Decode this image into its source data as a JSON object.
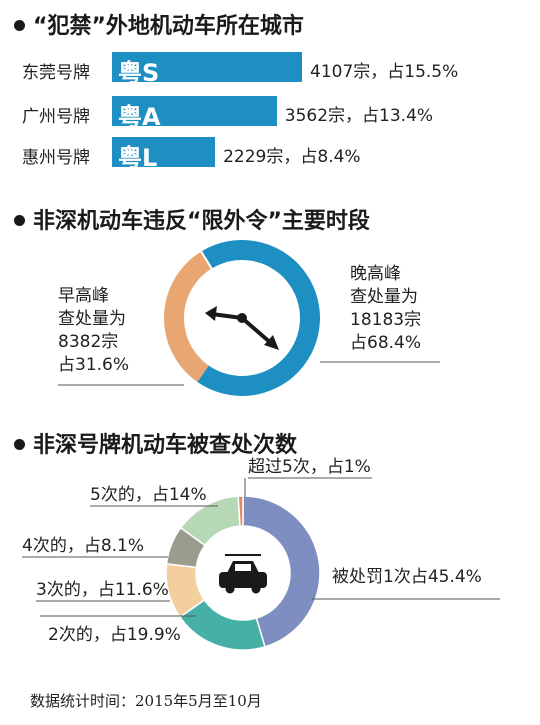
{
  "colors": {
    "bar": "#1d8fc2",
    "donut1_evening": "#1d8fc2",
    "donut1_morning": "#e8a772",
    "donut2": [
      "#7e8ec0",
      "#47b0a6",
      "#f4cf9e",
      "#9c9c8c",
      "#b6d8b5",
      "#e08a6a"
    ]
  },
  "section1": {
    "title": "“犯禁”外地机动车所在城市"
  },
  "section2": {
    "title": "非深机动车违反“限外令”主要时段",
    "morning_lines": [
      "早高峰",
      "查处量为",
      "8382宗",
      "占31.6%"
    ],
    "evening_lines": [
      "晚高峰",
      "查处量为",
      "18183宗",
      "占68.4%"
    ]
  },
  "section3": {
    "title": "非深号牌机动车被查处次数"
  },
  "footer": "数据统计时间：2015年5月至10月",
  "chart_data": [
    {
      "type": "bar",
      "title": "“犯禁”外地机动车所在城市",
      "categories": [
        "东莞号牌",
        "广州号牌",
        "惠州号牌"
      ],
      "plates": [
        "粤S",
        "粤A",
        "粤L"
      ],
      "values": [
        4107,
        3562,
        2229
      ],
      "value_labels": [
        "4107宗，占15.5%",
        "3562宗，占13.4%",
        "2229宗，占8.4%"
      ]
    },
    {
      "type": "pie",
      "title": "非深机动车违反“限外令”主要时段",
      "categories": [
        "早高峰",
        "晚高峰"
      ],
      "values": [
        8382,
        18183
      ],
      "percent": [
        31.6,
        68.4
      ]
    },
    {
      "type": "pie",
      "title": "非深号牌机动车被查处次数",
      "categories": [
        "被处罚1次",
        "2次的",
        "3次的",
        "4次的",
        "5次的",
        "超过5次"
      ],
      "values": [
        45.4,
        19.9,
        11.6,
        8.1,
        14,
        1
      ],
      "labels": [
        "被处罚1次占45.4%",
        "2次的，占19.9%",
        "3次的，占11.6%",
        "4次的，占8.1%",
        "5次的，占14%",
        "超过5次，占1%"
      ]
    }
  ]
}
